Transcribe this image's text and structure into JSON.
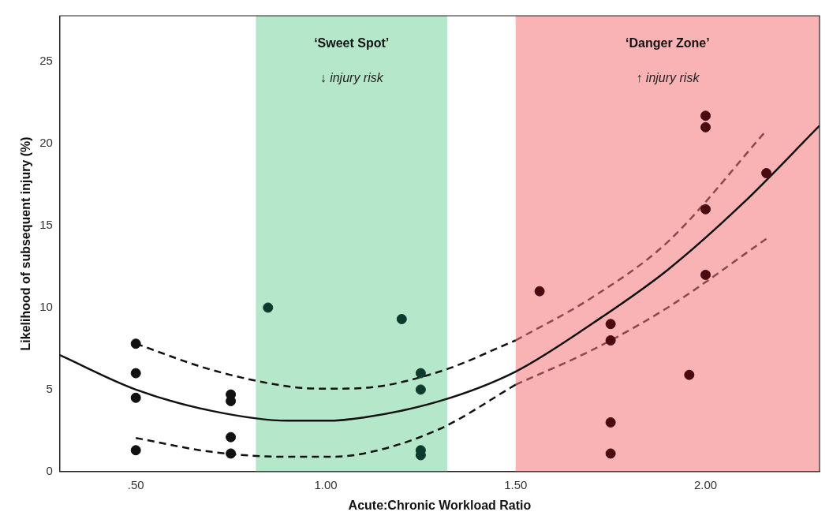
{
  "chart_data": {
    "type": "scatter",
    "xlabel": "Acute:Chronic Workload Ratio",
    "ylabel": "Likelihood of subsequent injury (%)",
    "xlim": [
      0.3,
      2.3
    ],
    "xticks": [
      {
        "value": 0.5,
        "label": ".50"
      },
      {
        "value": 1.0,
        "label": "1.00"
      },
      {
        "value": 1.5,
        "label": "1.50"
      },
      {
        "value": 2.0,
        "label": "2.00"
      }
    ],
    "ylim": [
      0,
      27.8
    ],
    "yticks": [
      0,
      5,
      10,
      15,
      20,
      25
    ],
    "grid": false,
    "legend": false,
    "marker": "circle",
    "bands": [
      {
        "axis": "x",
        "from": 0.816,
        "to": 1.32,
        "label": "‘Sweet Spot’",
        "color": "#b5e8cb"
      },
      {
        "axis": "x",
        "from": 1.5,
        "to": 2.3,
        "label": "‘Danger Zone’",
        "color": "#f9b3b5"
      }
    ],
    "annotations": [
      "↓ injury risk",
      "↑ injury risk"
    ],
    "series": [
      {
        "type": "scatter",
        "color": "#111111",
        "x": [
          0.5,
          0.5,
          0.5,
          0.5,
          0.75,
          0.75,
          0.75,
          0.75
        ],
        "values": [
          7.8,
          6.0,
          4.5,
          1.3,
          4.7,
          4.3,
          2.1,
          1.1
        ]
      },
      {
        "type": "scatter",
        "color": "#0d3b2e",
        "x": [
          0.848,
          1.2,
          1.25,
          1.25,
          1.25,
          1.25
        ],
        "values": [
          10.0,
          9.3,
          6.0,
          5.0,
          1.3,
          1.0
        ]
      },
      {
        "type": "scatter",
        "color": "#4a0a0f",
        "x": [
          1.563,
          1.75,
          1.75,
          1.75,
          1.75,
          1.957,
          2.0,
          2.0,
          2.0,
          2.0,
          2.16
        ],
        "values": [
          11.0,
          9.0,
          8.0,
          3.0,
          1.1,
          5.9,
          21.7,
          21.0,
          16.0,
          12.0,
          18.2
        ]
      },
      {
        "type": "line",
        "color": "#111111",
        "marker": "none",
        "line_style": "solid",
        "x": [
          0.3,
          0.5,
          0.7,
          0.9,
          1.0,
          1.1,
          1.3,
          1.5,
          1.7,
          1.9,
          2.1,
          2.3
        ],
        "values": [
          7.1,
          5.0,
          3.7,
          3.1,
          3.1,
          3.3,
          4.3,
          6.1,
          9.0,
          12.3,
          16.4,
          21.1
        ]
      },
      {
        "type": "line",
        "color": "#111111",
        "marker": "none",
        "line_style": "dashed",
        "x": [
          0.5,
          0.7,
          0.9,
          1.0,
          1.1,
          1.3,
          1.5
        ],
        "values": [
          7.8,
          6.2,
          5.2,
          5.05,
          5.1,
          6.1,
          8.0
        ]
      },
      {
        "type": "line",
        "color": "#8a4a4d",
        "marker": "none",
        "line_style": "dashed",
        "x": [
          1.5,
          1.7,
          1.9,
          2.16
        ],
        "values": [
          8.0,
          10.6,
          14.0,
          20.8
        ]
      },
      {
        "type": "line",
        "color": "#111111",
        "marker": "none",
        "line_style": "dashed",
        "x": [
          0.5,
          0.7,
          0.9,
          1.0,
          1.1,
          1.3,
          1.5
        ],
        "values": [
          2.05,
          1.2,
          0.9,
          0.9,
          1.1,
          2.6,
          5.3
        ]
      },
      {
        "type": "line",
        "color": "#8a4a4d",
        "marker": "none",
        "line_style": "dashed",
        "x": [
          1.5,
          1.7,
          1.9,
          2.16
        ],
        "values": [
          5.3,
          7.4,
          10.0,
          14.2
        ]
      }
    ]
  }
}
